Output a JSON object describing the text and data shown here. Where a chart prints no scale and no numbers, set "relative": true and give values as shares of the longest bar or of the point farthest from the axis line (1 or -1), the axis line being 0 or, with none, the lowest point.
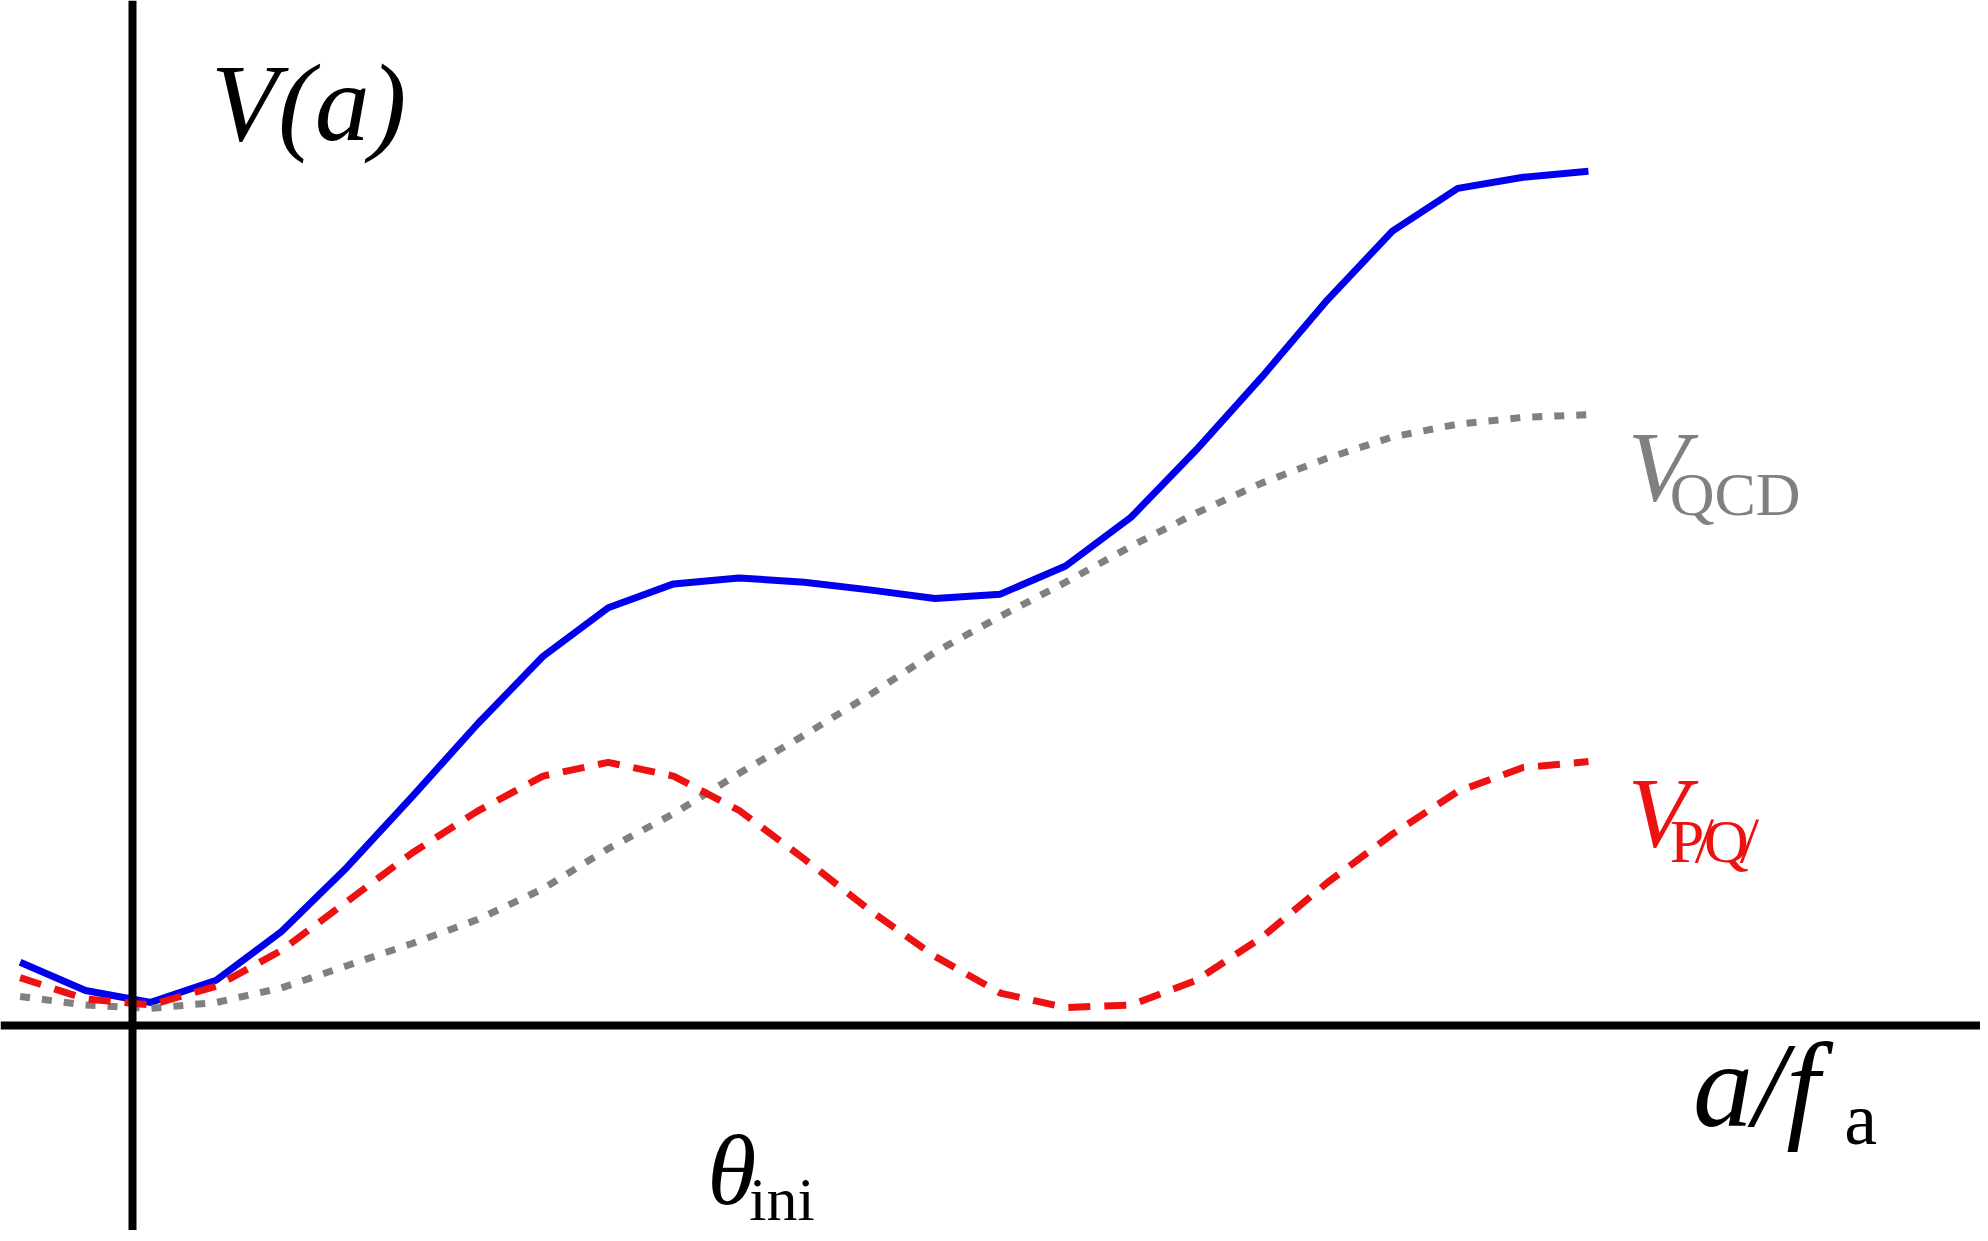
{
  "chart_data": {
    "type": "line",
    "relative": true,
    "xlabel": "a/f$_{a}$",
    "ylabel": "V(a)",
    "annotations": [
      "θ$_{ini}$"
    ],
    "categories": [
      null,
      null,
      null,
      null,
      null,
      null,
      null,
      null,
      null,
      null,
      null,
      null,
      null,
      null,
      null,
      null,
      null,
      null,
      null,
      null,
      null,
      null,
      null,
      null,
      null
    ],
    "series": [
      {
        "color": "#0000ee",
        "line_style": "solid",
        "values": [
          0.074,
          0.041,
          0.027,
          0.053,
          0.11,
          0.185,
          0.268,
          0.353,
          0.432,
          0.489,
          0.517,
          0.524,
          0.519,
          0.51,
          0.5,
          0.505,
          0.538,
          0.595,
          0.674,
          0.759,
          0.849,
          0.93,
          0.98,
          0.993,
          1.0
        ]
      },
      {
        "name": "V$_{QCD}$",
        "color": "#808080",
        "line_style": "dotted",
        "values": [
          0.034,
          0.024,
          0.02,
          0.027,
          0.044,
          0.07,
          0.096,
          0.124,
          0.16,
          0.207,
          0.248,
          0.295,
          0.34,
          0.387,
          0.437,
          0.479,
          0.519,
          0.561,
          0.6,
          0.635,
          0.664,
          0.689,
          0.704,
          0.712,
          0.715
        ]
      },
      {
        "name": "V$_{P̸Q̸}$",
        "color": "#ee1111",
        "line_style": "dashed",
        "values": [
          0.056,
          0.031,
          0.024,
          0.046,
          0.088,
          0.145,
          0.202,
          0.251,
          0.292,
          0.308,
          0.292,
          0.252,
          0.195,
          0.135,
          0.081,
          0.038,
          0.021,
          0.024,
          0.053,
          0.103,
          0.167,
          0.224,
          0.274,
          0.302,
          0.309
        ]
      }
    ]
  }
}
